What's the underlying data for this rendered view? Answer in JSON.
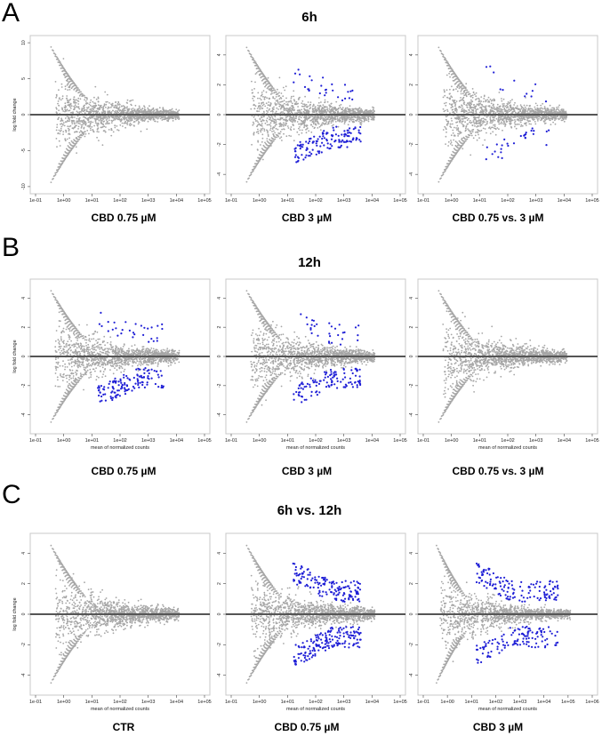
{
  "panels": [
    {
      "letter": "A",
      "title": "6h"
    },
    {
      "letter": "B",
      "title": "12h"
    },
    {
      "letter": "C",
      "title": "6h vs. 12h"
    }
  ],
  "colors": {
    "points": "#a6a6a6",
    "significant": "#1f1fd6",
    "zero_line": "#555555",
    "frame": "#c8c8c8"
  },
  "chart_data": [
    {
      "type": "scatter",
      "row": "6h",
      "caption": "CBD 0.75 µM",
      "ylabel": "log fold change",
      "xlabel": "",
      "x_log": true,
      "x_ticks": [
        "1e-01",
        "1e+00",
        "1e+01",
        "1e+02",
        "1e+03",
        "1e+04",
        "1e+05"
      ],
      "xlim": [
        0.1,
        100000
      ],
      "y_ticks": [
        "-10",
        "-5",
        "0",
        "5",
        "10"
      ],
      "ylim": [
        -11,
        11
      ],
      "show_xlabel": false
    },
    {
      "type": "scatter",
      "row": "6h",
      "caption": "CBD 3 µM",
      "ylabel": "",
      "xlabel": "",
      "x_log": true,
      "x_ticks": [
        "1e-01",
        "1e+00",
        "1e+01",
        "1e+02",
        "1e+03",
        "1e+04",
        "1e+05"
      ],
      "xlim": [
        0.1,
        100000
      ],
      "y_ticks": [
        "-4",
        "-2",
        "0",
        "2",
        "4"
      ],
      "ylim": [
        -5.3,
        5.3
      ],
      "show_xlabel": false
    },
    {
      "type": "scatter",
      "row": "6h",
      "caption": "CBD 0.75 vs. 3 µM",
      "ylabel": "",
      "xlabel": "",
      "x_log": true,
      "x_ticks": [
        "1e-01",
        "1e+00",
        "1e+01",
        "1e+02",
        "1e+03",
        "1e+04",
        "1e+05"
      ],
      "xlim": [
        0.1,
        100000
      ],
      "y_ticks": [
        "-4",
        "-2",
        "0",
        "2",
        "4"
      ],
      "ylim": [
        -5.3,
        5.3
      ],
      "show_xlabel": false
    },
    {
      "type": "scatter",
      "row": "12h",
      "caption": "CBD 0.75 µM",
      "ylabel": "log fold change",
      "xlabel": "mean of normalized counts",
      "x_log": true,
      "x_ticks": [
        "1e-01",
        "1e+00",
        "1e+01",
        "1e+02",
        "1e+03",
        "1e+04",
        "1e+05"
      ],
      "xlim": [
        0.1,
        100000
      ],
      "y_ticks": [
        "-4",
        "-2",
        "0",
        "2",
        "4"
      ],
      "ylim": [
        -5.3,
        5.3
      ],
      "show_xlabel": true
    },
    {
      "type": "scatter",
      "row": "12h",
      "caption": "CBD 3 µM",
      "ylabel": "",
      "xlabel": "mean of normalized counts",
      "x_log": true,
      "x_ticks": [
        "1e-01",
        "1e+00",
        "1e+01",
        "1e+02",
        "1e+03",
        "1e+04",
        "1e+05"
      ],
      "xlim": [
        0.1,
        100000
      ],
      "y_ticks": [
        "-4",
        "-2",
        "0",
        "2",
        "4"
      ],
      "ylim": [
        -5.3,
        5.3
      ],
      "show_xlabel": true
    },
    {
      "type": "scatter",
      "row": "12h",
      "caption": "CBD 0.75 vs. 3 µM",
      "ylabel": "",
      "xlabel": "mean of normalized counts",
      "x_log": true,
      "x_ticks": [
        "1e-01",
        "1e+00",
        "1e+01",
        "1e+02",
        "1e+03",
        "1e+04",
        "1e+05"
      ],
      "xlim": [
        0.1,
        100000
      ],
      "y_ticks": [
        "-4",
        "-2",
        "0",
        "2",
        "4"
      ],
      "ylim": [
        -5.3,
        5.3
      ],
      "show_xlabel": true
    },
    {
      "type": "scatter",
      "row": "6h vs. 12h",
      "caption": "CTR",
      "ylabel": "log fold change",
      "xlabel": "mean of normalized counts",
      "x_log": true,
      "x_ticks": [
        "1e-01",
        "1e+00",
        "1e+01",
        "1e+02",
        "1e+03",
        "1e+04",
        "1e+05"
      ],
      "xlim": [
        0.1,
        100000
      ],
      "y_ticks": [
        "-4",
        "-2",
        "0",
        "2",
        "4"
      ],
      "ylim": [
        -5.3,
        5.3
      ],
      "show_xlabel": true
    },
    {
      "type": "scatter",
      "row": "6h vs. 12h",
      "caption": "CBD 0.75 µM",
      "ylabel": "",
      "xlabel": "mean of normalized counts",
      "x_log": true,
      "x_ticks": [
        "1e-01",
        "1e+00",
        "1e+01",
        "1e+02",
        "1e+03",
        "1e+04",
        "1e+05"
      ],
      "xlim": [
        0.1,
        100000
      ],
      "y_ticks": [
        "-4",
        "-2",
        "0",
        "2",
        "4"
      ],
      "ylim": [
        -5.3,
        5.3
      ],
      "show_xlabel": true
    },
    {
      "type": "scatter",
      "row": "6h vs. 12h",
      "caption": "CBD 3 µM",
      "ylabel": "",
      "xlabel": "mean of normalized counts",
      "x_log": true,
      "x_ticks": [
        "1e-01",
        "1e+00",
        "1e+01",
        "1e+02",
        "1e+03",
        "1e+04",
        "1e+05",
        "1e+06"
      ],
      "xlim": [
        0.1,
        1000000
      ],
      "y_ticks": [
        "-4",
        "-2",
        "0",
        "2",
        "4"
      ],
      "ylim": [
        -5.3,
        5.3
      ],
      "show_xlabel": true
    }
  ]
}
